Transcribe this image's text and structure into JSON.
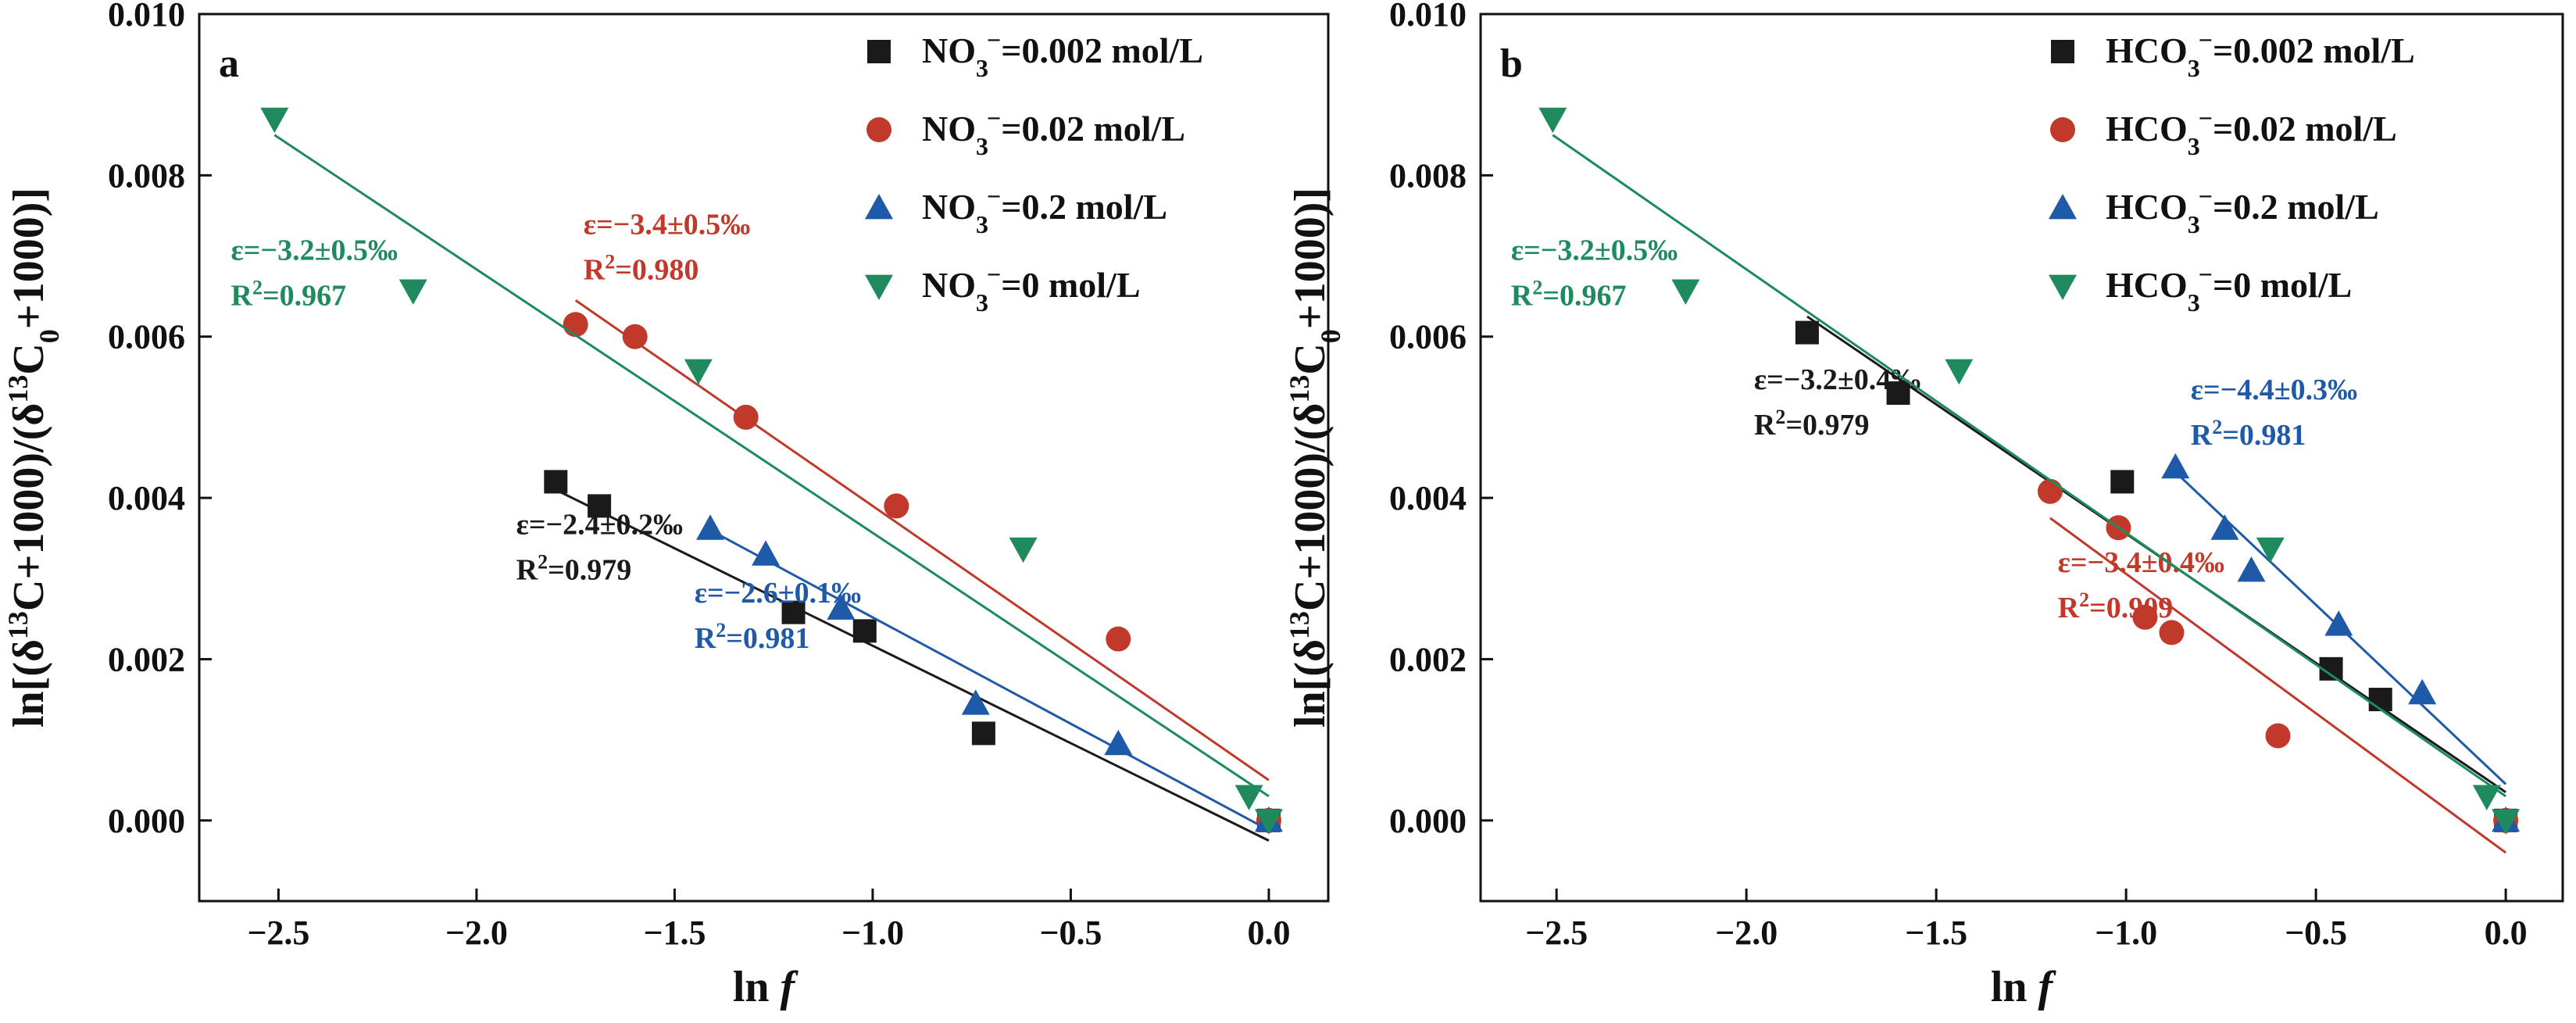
{
  "chart_data": [
    {
      "type": "scatter",
      "panel_label": "a",
      "xlabel_main": "ln",
      "xlabel_italic": "f",
      "ylabel_parts": [
        "ln[(δ",
        "13",
        "C+1000)/(δ",
        "13",
        "C",
        "0",
        "+1000)]"
      ],
      "xlim": [
        -2.7,
        0.15
      ],
      "ylim": [
        -0.001,
        0.01
      ],
      "xticks": [
        -2.5,
        -2.0,
        -1.5,
        -1.0,
        -0.5,
        0.0
      ],
      "xtick_labels": [
        "−2.5",
        "−2.0",
        "−1.5",
        "−1.0",
        "−0.5",
        "0.0"
      ],
      "yticks": [
        0.0,
        0.002,
        0.004,
        0.006,
        0.008,
        0.01
      ],
      "ytick_labels": [
        "0.000",
        "0.002",
        "0.004",
        "0.006",
        "0.008",
        "0.010"
      ],
      "legend_position": "top-right",
      "series": [
        {
          "name_prefix": "NO",
          "name_sub": "3",
          "name_sup": "−",
          "name_suffix": "=0.002 mol/L",
          "color": "#1a1a1a",
          "marker": "square",
          "x": [
            -1.8,
            -1.69,
            -1.2,
            -1.02,
            -0.72,
            0.0
          ],
          "y": [
            0.0042,
            0.0039,
            0.00258,
            0.00235,
            0.00108,
            0.0
          ],
          "fit": {
            "x0": -1.8,
            "y0": 0.0041,
            "x1": 0.0,
            "y1": -0.00025
          },
          "annotation": {
            "eps": "ε=−2.4±0.2‰",
            "r2_value": "=0.979",
            "x": -1.9,
            "y": 0.00355
          }
        },
        {
          "name_prefix": "NO",
          "name_sub": "3",
          "name_sup": "−",
          "name_suffix": "=0.02 mol/L",
          "color": "#c0392b",
          "marker": "circle",
          "x": [
            -1.75,
            -1.6,
            -1.32,
            -0.94,
            -0.38,
            0.0
          ],
          "y": [
            0.00615,
            0.006,
            0.005,
            0.0039,
            0.00225,
            0.0
          ],
          "fit": {
            "x0": -1.75,
            "y0": 0.00645,
            "x1": 0.0,
            "y1": 0.0005
          },
          "annotation": {
            "eps": "ε=−3.4±0.5‰",
            "r2_value": "=0.980",
            "x": -1.73,
            "y": 0.00727
          }
        },
        {
          "name_prefix": "NO",
          "name_sub": "3",
          "name_sup": "−",
          "name_suffix": "=0.2 mol/L",
          "color": "#1f5aa8",
          "marker": "triangle-up",
          "x": [
            -1.41,
            -1.27,
            -1.08,
            -0.74,
            -0.38,
            0.0
          ],
          "y": [
            0.00362,
            0.0033,
            0.00263,
            0.00145,
            0.00095,
            0.0
          ],
          "fit": {
            "x0": -1.41,
            "y0": 0.0036,
            "x1": 0.0,
            "y1": -0.00012
          },
          "annotation": {
            "eps": "ε=−2.6±0.1‰",
            "r2_value": "=0.981",
            "x": -1.45,
            "y": 0.0027
          }
        },
        {
          "name_prefix": "NO",
          "name_sub": "3",
          "name_sup": "−",
          "name_suffix": "=0 mol/L",
          "color": "#1e8a5e",
          "marker": "triangle-down",
          "x": [
            -2.51,
            -2.16,
            -1.44,
            -0.62,
            -0.05,
            0.0
          ],
          "y": [
            0.0087,
            0.00657,
            0.00558,
            0.00337,
            0.0003,
            0.0
          ],
          "fit": {
            "x0": -2.51,
            "y0": 0.0085,
            "x1": 0.0,
            "y1": 0.0003
          },
          "annotation": {
            "eps": "ε=−3.2±0.5‰",
            "r2_value": "=0.967",
            "x": -2.62,
            "y": 0.00695
          }
        }
      ]
    },
    {
      "type": "scatter",
      "panel_label": "b",
      "xlabel_main": "ln",
      "xlabel_italic": "f",
      "ylabel_parts": [
        "ln[(δ",
        "13",
        "C+1000)/(δ",
        "13",
        "C",
        "0",
        "+1000)]"
      ],
      "xlim": [
        -2.7,
        0.15
      ],
      "ylim": [
        -0.001,
        0.01
      ],
      "xticks": [
        -2.5,
        -2.0,
        -1.5,
        -1.0,
        -0.5,
        0.0
      ],
      "xtick_labels": [
        "−2.5",
        "−2.0",
        "−1.5",
        "−1.0",
        "−0.5",
        "0.0"
      ],
      "yticks": [
        0.0,
        0.002,
        0.004,
        0.006,
        0.008,
        0.01
      ],
      "ytick_labels": [
        "0.000",
        "0.002",
        "0.004",
        "0.006",
        "0.008",
        "0.010"
      ],
      "legend_position": "top-right",
      "series": [
        {
          "name_prefix": "HCO",
          "name_sub": "3",
          "name_sup": "−",
          "name_suffix": "=0.002 mol/L",
          "color": "#1a1a1a",
          "marker": "square",
          "x": [
            -1.84,
            -1.6,
            -1.01,
            -0.46,
            -0.33,
            0.0
          ],
          "y": [
            0.00605,
            0.0053,
            0.0042,
            0.00188,
            0.0015,
            0.0
          ],
          "fit": {
            "x0": -1.84,
            "y0": 0.00625,
            "x1": 0.0,
            "y1": 0.00035
          },
          "annotation": {
            "eps": "ε=−3.2±0.4‰",
            "r2_value": "=0.979",
            "x": -1.98,
            "y": 0.00535
          }
        },
        {
          "name_prefix": "HCO",
          "name_sub": "3",
          "name_sup": "−",
          "name_suffix": "=0.02 mol/L",
          "color": "#c0392b",
          "marker": "circle",
          "x": [
            -1.2,
            -1.02,
            -0.95,
            -0.88,
            -0.6,
            0.0
          ],
          "y": [
            0.00408,
            0.00363,
            0.00252,
            0.00233,
            0.00105,
            0.0
          ],
          "fit": {
            "x0": -1.2,
            "y0": 0.00375,
            "x1": 0.0,
            "y1": -0.0004
          },
          "annotation": {
            "eps": "ε=−3.4±0.4‰",
            "r2_value": "=0.909",
            "x": -1.18,
            "y": 0.00308
          }
        },
        {
          "name_prefix": "HCO",
          "name_sub": "3",
          "name_sup": "−",
          "name_suffix": "=0.2 mol/L",
          "color": "#1f5aa8",
          "marker": "triangle-up",
          "x": [
            -0.87,
            -0.74,
            -0.67,
            -0.44,
            -0.22,
            0.0
          ],
          "y": [
            0.00438,
            0.00362,
            0.0031,
            0.00243,
            0.00158,
            0.0
          ],
          "fit": {
            "x0": -0.87,
            "y0": 0.00432,
            "x1": 0.0,
            "y1": 0.00045
          },
          "annotation": {
            "eps": "ε=−4.4±0.3‰",
            "r2_value": "=0.981",
            "x": -0.83,
            "y": 0.00522
          }
        },
        {
          "name_prefix": "HCO",
          "name_sub": "3",
          "name_sup": "−",
          "name_suffix": "=0 mol/L",
          "color": "#1e8a5e",
          "marker": "triangle-down",
          "x": [
            -2.51,
            -2.16,
            -1.44,
            -0.62,
            -0.05,
            0.0
          ],
          "y": [
            0.0087,
            0.00657,
            0.00558,
            0.00337,
            0.0003,
            0.0
          ],
          "fit": {
            "x0": -2.51,
            "y0": 0.0085,
            "x1": 0.0,
            "y1": 0.0003
          },
          "annotation": {
            "eps": "ε=−3.2±0.5‰",
            "r2_value": "=0.967",
            "x": -2.62,
            "y": 0.00695
          }
        }
      ]
    }
  ]
}
